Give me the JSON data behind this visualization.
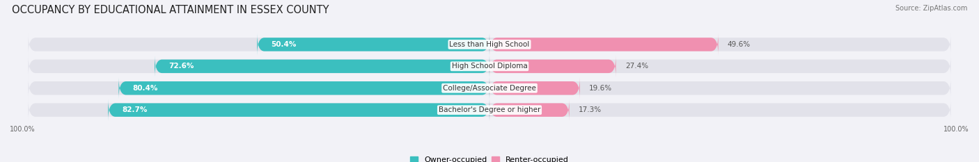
{
  "title": "OCCUPANCY BY EDUCATIONAL ATTAINMENT IN ESSEX COUNTY",
  "source": "Source: ZipAtlas.com",
  "categories": [
    "Less than High School",
    "High School Diploma",
    "College/Associate Degree",
    "Bachelor's Degree or higher"
  ],
  "owner_values": [
    50.4,
    72.6,
    80.4,
    82.7
  ],
  "renter_values": [
    49.6,
    27.4,
    19.6,
    17.3
  ],
  "owner_color": "#3bbfbf",
  "renter_color": "#f090b0",
  "owner_label": "Owner-occupied",
  "renter_label": "Renter-occupied",
  "background_color": "#f2f2f7",
  "bar_background": "#e2e2ea",
  "title_fontsize": 10.5,
  "source_fontsize": 7,
  "label_fontsize": 7.5,
  "value_fontsize": 7.5,
  "legend_fontsize": 8,
  "axis_label_fontsize": 7,
  "bar_height": 0.62,
  "figsize": [
    14.06,
    2.33
  ],
  "dpi": 100
}
